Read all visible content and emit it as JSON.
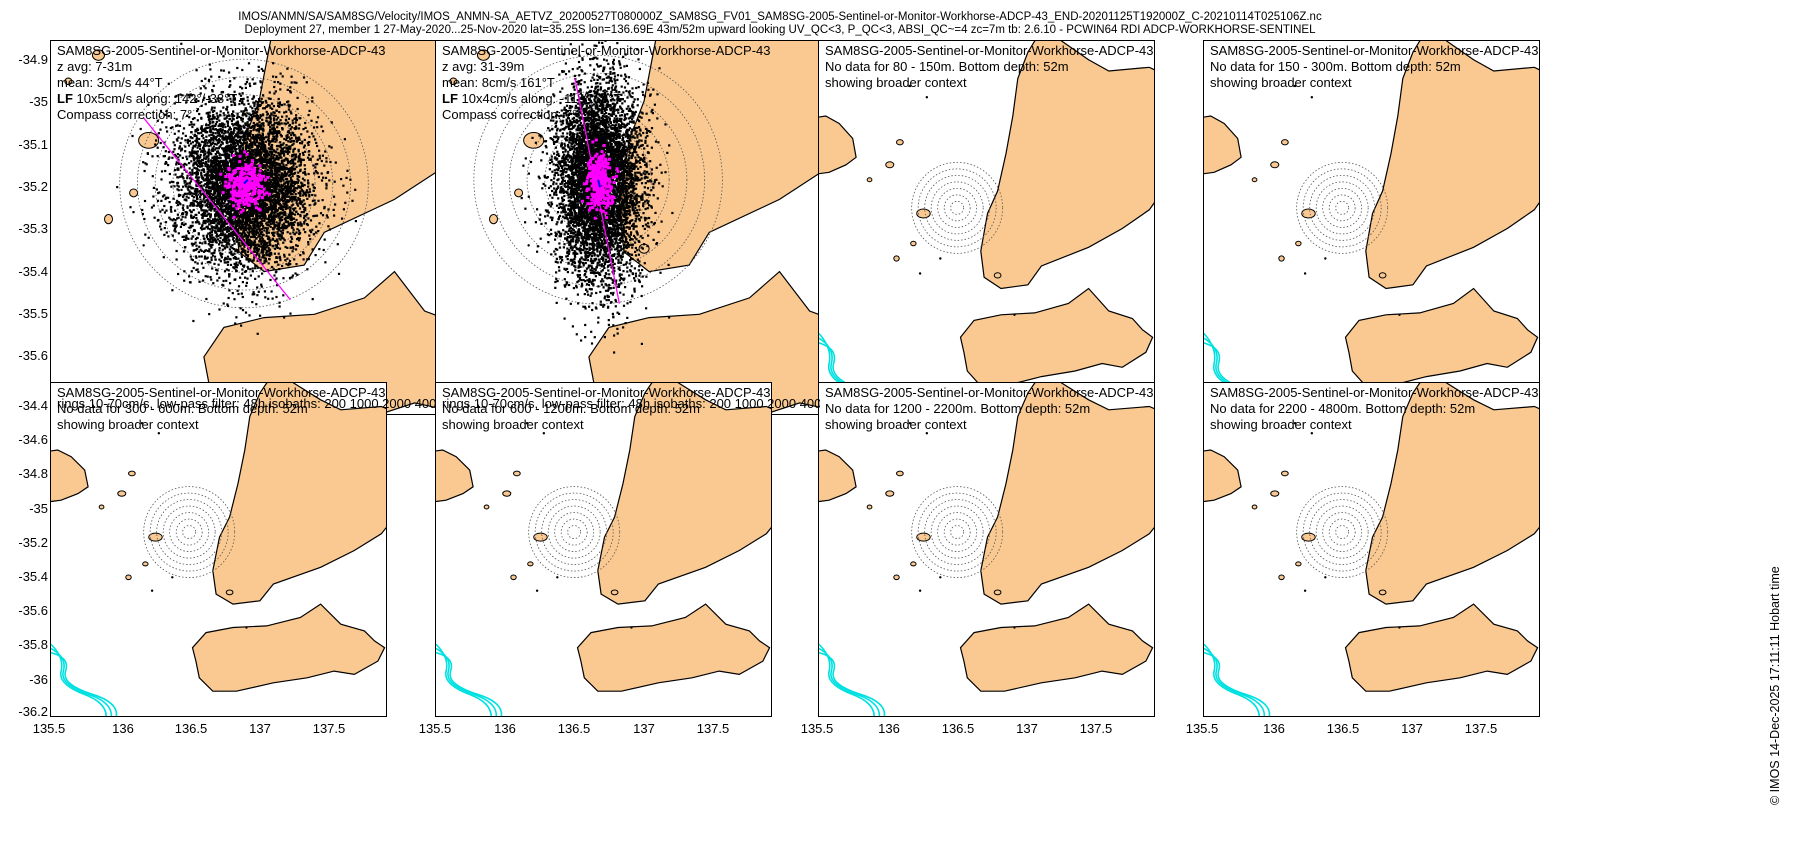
{
  "figure": {
    "title_line1": "IMOS/ANMN/SA/SAM8SG/Velocity/IMOS_ANMN-SA_AETVZ_20200527T080000Z_SAM8SG_FV01_SAM8SG-2005-Sentinel-or-Monitor-Workhorse-ADCP-43_END-20201125T192000Z_C-20210114T025106Z.nc",
    "title_line2": "Deployment 27, member 1 27-May-2020...25-Nov-2020 lat=35.25S lon=136.69E 43m/52m upward looking UV_QC<3, P_QC<3, ABSI_QC~=4 zc=7m tb: 2.6.10 - PCWIN64 RDI ADCP-WORKHORSE-SENTINEL",
    "credit": "© IMOS 14-Dec-2025 17:11:11 Hobart time"
  },
  "colors": {
    "land": "#f9c991",
    "isobath": "#00e0e0",
    "scatter": "#000000",
    "lowpass": "#ff00ff",
    "mean": "#0000ff",
    "ring": "#555555"
  },
  "axes": {
    "top_row_yticks": [
      "-34.9",
      "-35",
      "-35.1",
      "-35.2",
      "-35.3",
      "-35.4",
      "-35.5",
      "-35.6"
    ],
    "bottom_row_yticks": [
      "-34.4",
      "-34.6",
      "-34.8",
      "-35",
      "-35.2",
      "-35.4",
      "-35.6",
      "-35.8",
      "-36",
      "-36.2"
    ],
    "xticks": [
      "135.5",
      "136",
      "136.5",
      "137",
      "137.5"
    ]
  },
  "panels": {
    "p1": {
      "instrument": "SAM8SG-2005-Sentinel-or-Monitor-Workhorse-ADCP-43",
      "line2": "z avg: 7-31m",
      "line3": "mean: 3cm/s 44°T",
      "lf_bold": "LF",
      "line4_rest": " 10x5cm/s along: 142°/-38°T",
      "line5": "Compass correction: 7°",
      "footer": "rings 10-70cm/s, low-pass filter: 48h isobaths: 200 1000 2000 4000m"
    },
    "p2": {
      "instrument": "SAM8SG-2005-Sentinel-or-Monitor-Workhorse-ADCP-43",
      "line2": "z avg: 31-39m",
      "line3": "mean: 8cm/s 161°T",
      "lf_bold": "LF",
      "line4_rest": " 10x4cm/s along: -11°/169°T",
      "line5": "Compass correction: 7°",
      "footer": "rings 10-70cm/s, low-pass filter: 48h isobaths: 200 1000 2000 4000m"
    },
    "p3": {
      "instrument": "SAM8SG-2005-Sentinel-or-Monitor-Workhorse-ADCP-43",
      "line2": "No data for 80 - 150m. Bottom depth: 52m",
      "line3": "showing broader context"
    },
    "p4": {
      "instrument": "SAM8SG-2005-Sentinel-or-Monitor-Workhorse-ADCP-43",
      "line2": "No data for 150 - 300m. Bottom depth: 52m",
      "line3": "showing broader context"
    },
    "p5": {
      "instrument": "SAM8SG-2005-Sentinel-or-Monitor-Workhorse-ADCP-43",
      "line2": "No data for 300 - 600m. Bottom depth: 52m",
      "line3": "showing broader context"
    },
    "p6": {
      "instrument": "SAM8SG-2005-Sentinel-or-Monitor-Workhorse-ADCP-43",
      "line2": "No data for 600 - 1200m. Bottom depth: 52m",
      "line3": "showing broader context"
    },
    "p7": {
      "instrument": "SAM8SG-2005-Sentinel-or-Monitor-Workhorse-ADCP-43",
      "line2": "No data for 1200 - 2200m. Bottom depth: 52m",
      "line3": "showing broader context"
    },
    "p8": {
      "instrument": "SAM8SG-2005-Sentinel-or-Monitor-Workhorse-ADCP-43",
      "line2": "No data for 2200 - 4800m. Bottom depth: 52m",
      "line3": "showing broader context"
    }
  },
  "chart_data": [
    {
      "type": "scatter",
      "panel": "p1",
      "title": "z avg: 7-31m",
      "xlabel": "",
      "ylabel": "",
      "ylim": [
        -35.63,
        -34.86
      ],
      "site": {
        "lon": 136.69,
        "lat": -35.25
      },
      "ring_speeds_cms": [
        10,
        20,
        30,
        40,
        50,
        60,
        70
      ],
      "mean": {
        "speed_cms": 3,
        "direction_degT": 44
      },
      "lowpass_ellipse": {
        "major_cms": 10,
        "minor_cms": 5,
        "along_degT": 142
      },
      "compass_correction_deg": 7,
      "isobaths_m": [
        200,
        1000,
        2000,
        4000
      ],
      "lowpass_filter_h": 48
    },
    {
      "type": "scatter",
      "panel": "p2",
      "title": "z avg: 31-39m",
      "xlabel": "",
      "ylabel": "",
      "ylim": [
        -35.63,
        -34.86
      ],
      "site": {
        "lon": 136.69,
        "lat": -35.25
      },
      "ring_speeds_cms": [
        10,
        20,
        30,
        40,
        50,
        60,
        70
      ],
      "mean": {
        "speed_cms": 8,
        "direction_degT": 161
      },
      "lowpass_ellipse": {
        "major_cms": 10,
        "minor_cms": 4,
        "along_degT": -11
      },
      "compass_correction_deg": 7,
      "isobaths_m": [
        200,
        1000,
        2000,
        4000
      ],
      "lowpass_filter_h": 48
    },
    {
      "type": "map",
      "panel": "p3",
      "depth_range_m": [
        80,
        150
      ],
      "bottom_depth_m": 52,
      "xlim": [
        135.47,
        137.88
      ],
      "ylim": [
        -35.63,
        -34.86
      ]
    },
    {
      "type": "map",
      "panel": "p4",
      "depth_range_m": [
        150,
        300
      ],
      "bottom_depth_m": 52,
      "xlim": [
        135.47,
        137.88
      ],
      "ylim": [
        -35.63,
        -34.86
      ]
    },
    {
      "type": "map",
      "panel": "p5",
      "depth_range_m": [
        300,
        600
      ],
      "bottom_depth_m": 52,
      "xlim": [
        135.47,
        137.88
      ],
      "ylim": [
        -36.24,
        -34.29
      ]
    },
    {
      "type": "map",
      "panel": "p6",
      "depth_range_m": [
        600,
        1200
      ],
      "bottom_depth_m": 52,
      "xlim": [
        135.47,
        137.88
      ],
      "ylim": [
        -36.24,
        -34.29
      ]
    },
    {
      "type": "map",
      "panel": "p7",
      "depth_range_m": [
        1200,
        2200
      ],
      "bottom_depth_m": 52,
      "xlim": [
        135.47,
        137.88
      ],
      "ylim": [
        -36.24,
        -34.29
      ]
    },
    {
      "type": "map",
      "panel": "p8",
      "depth_range_m": [
        2200,
        4800
      ],
      "bottom_depth_m": 52,
      "xlim": [
        135.47,
        137.88
      ],
      "ylim": [
        -36.24,
        -34.29
      ]
    }
  ]
}
